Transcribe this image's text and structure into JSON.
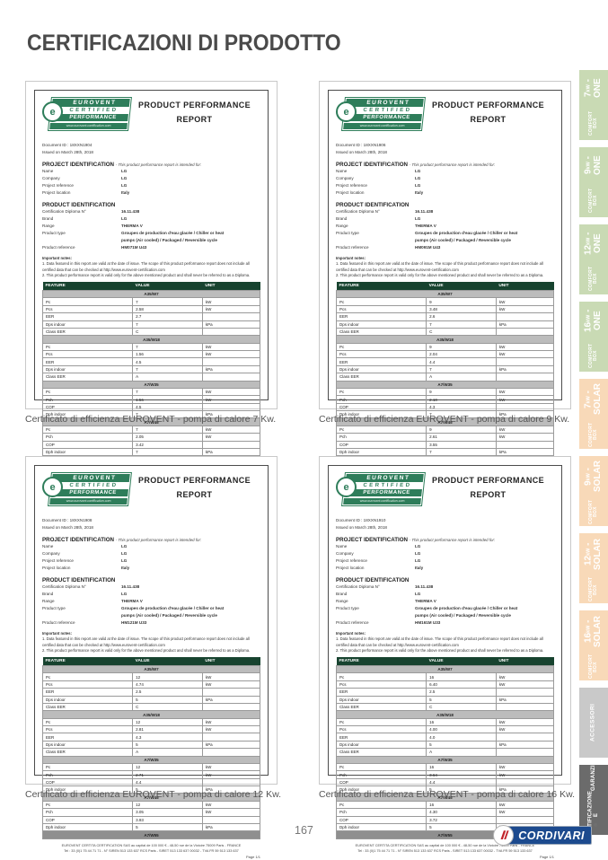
{
  "page": {
    "title": "CERTIFICAZIONI DI PRODOTTO",
    "page_number": "167",
    "brand": "CORDIVARI",
    "registered_mark": "®"
  },
  "colors": {
    "tab_green": "#c9dab4",
    "tab_peach": "#f8d9b8",
    "tab_gray": "#c9c9c9",
    "tab_dark": "#6b6b6b",
    "eurovent_green": "#2e7d5a",
    "table_header_green": "#17432f",
    "cordivari_blue": "#1c4a8e",
    "cordivari_red": "#c2232a"
  },
  "eurovent": {
    "word1": "EUROVENT",
    "word2": "CERTIFIED",
    "word3": "PERFORMANCE",
    "site": "www.eurovent-certification.com",
    "emblem": "e"
  },
  "labels": {
    "report_title_1": "PRODUCT PERFORMANCE",
    "report_title_2": "REPORT",
    "project_heading": "PROJECT IDENTIFICATION",
    "project_note": "-  This product performance report is intended for:",
    "f_name": "Name",
    "f_company": "Company",
    "f_project_reference": "Project reference",
    "f_project_location": "Project location",
    "product_heading": "PRODUCT IDENTIFICATION",
    "f_diploma": "Certification Diploma N°",
    "f_brand": "Brand",
    "f_range": "Range",
    "f_product_type": "Product type",
    "f_product_reference": "Product reference",
    "notes_heading": "Important notes:",
    "note1": "1.  Data featured in this report are valid at the date of issue. The scope of this product performance report does not include all certified data that can be checked at http://www.eurovent-certification.com",
    "note2": "2.  This product performance report is valid only for the above mentioned product and shall never be referred to as a Diploma.",
    "footer1": "EUROVENT CERTITA CERTIFICATION SAS au capital de 100 000 € - 48-50 rue de la Victoire 75009 Paris - FRANCE",
    "footer2": "Tel : 33 (0)1 75 44 71 71 - N° SIREN 513 133 637 RCS Paris - SIRET 513 133 637 00032 - TVA FR 59 513 133 637",
    "page_label": "Page 1/1"
  },
  "certificates": [
    {
      "caption": "Certificato di efficienza EUROVENT - pompa di calore 7 Kw.",
      "doc_id": "Document ID : 18XXN1904",
      "issued": "Issued on March 28th, 2018",
      "name": "LG",
      "company": "LG",
      "project_reference": "LG",
      "project_location": "Italy",
      "diploma": "16.11.438",
      "brand": "LG",
      "range": "THERMA V",
      "product_type": "Groupes de production d'eau glacée / Chiller or heat\npumps (Air cooled) / Packaged / Reversible cycle",
      "product_reference": "HM071M U43",
      "table": {
        "headers": [
          "FEATURE",
          "VALUE",
          "UNIT"
        ],
        "sections": [
          {
            "label": "A35/W7",
            "rows": [
              [
                "Pc",
                "7",
                "kW"
              ],
              [
                "Pcs",
                "2.58",
                "kW"
              ],
              [
                "EER",
                "2.7",
                ""
              ],
              [
                "Dps indoor",
                "7",
                "kPa"
              ],
              [
                "Class EER",
                "C",
                ""
              ]
            ]
          },
          {
            "label": "A35/W18",
            "rows": [
              [
                "Pc",
                "7",
                "kW"
              ],
              [
                "Pcs",
                "1.56",
                "kW"
              ],
              [
                "EER",
                "4.5",
                ""
              ],
              [
                "Dps indoor",
                "7",
                "kPa"
              ],
              [
                "Class EER",
                "A",
                ""
              ]
            ]
          },
          {
            "label": "A7/W35",
            "rows": [
              [
                "Pc",
                "7",
                "kW"
              ],
              [
                "Pch",
                "1.56",
                "kW"
              ],
              [
                "COP",
                "4.5",
                ""
              ],
              [
                "Dph indoor",
                "7",
                "kPa"
              ]
            ]
          },
          {
            "label": "A7/W45",
            "rows": [
              [
                "Pc",
                "7",
                "kW"
              ],
              [
                "Pch",
                "2.05",
                "kW"
              ],
              [
                "COP",
                "3.42",
                ""
              ],
              [
                "Dph indoor",
                "7",
                "kPa"
              ]
            ]
          }
        ],
        "end_bar": "A7/W55"
      }
    },
    {
      "caption": "Certificato di efficienza EUROVENT - pompa di calore 9 Kw.",
      "doc_id": "Document ID : 18XXN1906",
      "issued": "Issued on March 28th, 2018",
      "name": "LG",
      "company": "LG",
      "project_reference": "LG",
      "project_location": "Italy",
      "diploma": "16.11.438",
      "brand": "LG",
      "range": "THERMA V",
      "product_type": "Groupes de production d'eau glacée / Chiller or heat\npumps (Air cooled) / Packaged / Reversible cycle",
      "product_reference": "HM091M U43",
      "table": {
        "headers": [
          "FEATURE",
          "VALUE",
          "UNIT"
        ],
        "sections": [
          {
            "label": "A35/W7",
            "rows": [
              [
                "Pc",
                "9",
                "kW"
              ],
              [
                "Pcs",
                "3.48",
                "kW"
              ],
              [
                "EER",
                "2.6",
                ""
              ],
              [
                "Dps indoor",
                "7",
                "kPa"
              ],
              [
                "Class EER",
                "C",
                ""
              ]
            ]
          },
          {
            "label": "A35/W18",
            "rows": [
              [
                "Pc",
                "9",
                "kW"
              ],
              [
                "Pcs",
                "2.04",
                "kW"
              ],
              [
                "EER",
                "4.4",
                ""
              ],
              [
                "Dps indoor",
                "7",
                "kPa"
              ],
              [
                "Class EER",
                "A",
                ""
              ]
            ]
          },
          {
            "label": "A7/W35",
            "rows": [
              [
                "Pc",
                "9",
                "kW"
              ],
              [
                "Pch",
                "2.10",
                "kW"
              ],
              [
                "COP",
                "4.3",
                ""
              ],
              [
                "Dph indoor",
                "7",
                "kPa"
              ]
            ]
          },
          {
            "label": "A7/W45",
            "rows": [
              [
                "Pc",
                "9",
                "kW"
              ],
              [
                "Pch",
                "2.61",
                "kW"
              ],
              [
                "COP",
                "3.55",
                ""
              ],
              [
                "Dph indoor",
                "7",
                "kPa"
              ]
            ]
          }
        ],
        "end_bar": "A7/W55"
      }
    },
    {
      "caption": "Certificato di efficienza EUROVENT - pompa di calore 12 Kw.",
      "doc_id": "Document ID : 18XXN1908",
      "issued": "Issued on March 28th, 2018",
      "name": "LG",
      "company": "LG",
      "project_reference": "LG",
      "project_location": "Italy",
      "diploma": "16.11.438",
      "brand": "LG",
      "range": "THERMA V",
      "product_type": "Groupes de production d'eau glacée / Chiller or heat\npumps (Air cooled) / Packaged / Reversible cycle",
      "product_reference": "HM121M U33",
      "table": {
        "headers": [
          "FEATURE",
          "VALUE",
          "UNIT"
        ],
        "sections": [
          {
            "label": "A35/W7",
            "rows": [
              [
                "Pc",
                "12",
                "kW"
              ],
              [
                "Pcs",
                "4.74",
                "kW"
              ],
              [
                "EER",
                "2.5",
                ""
              ],
              [
                "Dps indoor",
                "5",
                "kPa"
              ],
              [
                "Class EER",
                "C",
                ""
              ]
            ]
          },
          {
            "label": "A35/W18",
            "rows": [
              [
                "Pc",
                "12",
                "kW"
              ],
              [
                "Pcs",
                "2.81",
                "kW"
              ],
              [
                "EER",
                "4.3",
                ""
              ],
              [
                "Dps indoor",
                "5",
                "kPa"
              ],
              [
                "Class EER",
                "A",
                ""
              ]
            ]
          },
          {
            "label": "A7/W35",
            "rows": [
              [
                "Pc",
                "12",
                "kW"
              ],
              [
                "Pch",
                "2.71",
                "kW"
              ],
              [
                "COP",
                "4.4",
                ""
              ],
              [
                "Dph indoor",
                "5",
                "kPa"
              ]
            ]
          },
          {
            "label": "A7/W45",
            "rows": [
              [
                "Pc",
                "12",
                "kW"
              ],
              [
                "Pch",
                "3.05",
                "kW"
              ],
              [
                "COP",
                "3.93",
                ""
              ],
              [
                "Dph indoor",
                "5",
                "kPa"
              ]
            ]
          }
        ],
        "end_bar": "A7/W55"
      }
    },
    {
      "caption": "Certificato di efficienza EUROVENT - pompa di calore 16 Kw.",
      "doc_id": "Document ID : 18XXN1910",
      "issued": "Issued on March 28th, 2018",
      "name": "LG",
      "company": "LG",
      "project_reference": "LG",
      "project_location": "Italy",
      "diploma": "16.11.438",
      "brand": "LG",
      "range": "THERMA V",
      "product_type": "Groupes de production d'eau glacée / Chiller or heat\npumps (Air cooled) / Packaged / Reversible cycle",
      "product_reference": "HM161M U33",
      "table": {
        "headers": [
          "FEATURE",
          "VALUE",
          "UNIT"
        ],
        "sections": [
          {
            "label": "A35/W7",
            "rows": [
              [
                "Pc",
                "16",
                "kW"
              ],
              [
                "Pcs",
                "6.40",
                "kW"
              ],
              [
                "EER",
                "2.5",
                ""
              ],
              [
                "Dps indoor",
                "5",
                "kPa"
              ],
              [
                "Class EER",
                "C",
                ""
              ]
            ]
          },
          {
            "label": "A35/W18",
            "rows": [
              [
                "Pc",
                "16",
                "kW"
              ],
              [
                "Pcs",
                "4.00",
                "kW"
              ],
              [
                "EER",
                "4.0",
                ""
              ],
              [
                "Dps indoor",
                "5",
                "kPa"
              ],
              [
                "Class EER",
                "A",
                ""
              ]
            ]
          },
          {
            "label": "A7/W35",
            "rows": [
              [
                "Pc",
                "16",
                "kW"
              ],
              [
                "Pch",
                "3.64",
                "kW"
              ],
              [
                "COP",
                "4.4",
                ""
              ],
              [
                "Dph indoor",
                "5",
                "kPa"
              ]
            ]
          },
          {
            "label": "A7/W45",
            "rows": [
              [
                "Pc",
                "16",
                "kW"
              ],
              [
                "Pch",
                "4.30",
                "kW"
              ],
              [
                "COP",
                "3.72",
                ""
              ],
              [
                "Dph indoor",
                "5",
                "kPa"
              ]
            ]
          }
        ],
        "end_bar": "A7/W55"
      }
    }
  ],
  "sidebar": {
    "tabs": [
      {
        "top": "COMFORT BOX",
        "value": "7",
        "unit": "kW",
        "tail": " - ONE"
      },
      {
        "top": "COMFORT BOX",
        "value": "9",
        "unit": "kW",
        "tail": " - ONE"
      },
      {
        "top": "COMFORT BOX",
        "value": "12",
        "unit": "kW",
        "tail": " - ONE"
      },
      {
        "top": "COMFORT BOX",
        "value": "16",
        "unit": "kW",
        "tail": " - ONE"
      },
      {
        "top": "COMFORT BOX",
        "value": "7",
        "unit": "kW",
        "tail": " - SOLAR"
      },
      {
        "top": "COMFORT BOX",
        "value": "9",
        "unit": "kW",
        "tail": " - SOLAR"
      },
      {
        "top": "COMFORT BOX",
        "value": "12",
        "unit": "kW",
        "tail": " - SOLAR"
      },
      {
        "top": "COMFORT BOX",
        "value": "16",
        "unit": "kW",
        "tail": " - SOLAR"
      },
      {
        "label": "ACCESSORI"
      },
      {
        "line1": "CERTIFICAZIONE E",
        "line2": "GARANZIA"
      }
    ]
  }
}
